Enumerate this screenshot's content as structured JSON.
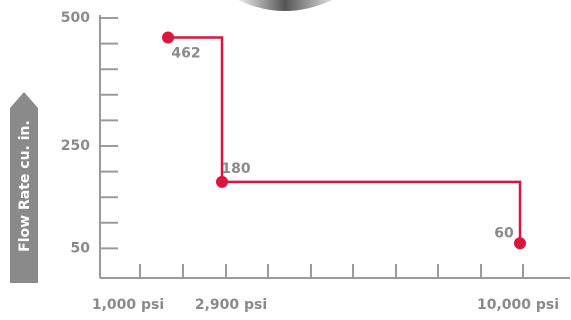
{
  "chart_data": {
    "type": "step-line",
    "y_label": "Flow Rate cu. in.",
    "categories": [
      "1,000 psi",
      "2,900 psi",
      "10,000 psi"
    ],
    "values": [
      462,
      180,
      60
    ],
    "color": "#d9163c",
    "ylim": [
      0,
      500
    ],
    "yticks": [
      50,
      250,
      500
    ],
    "y_minor_ticks": [
      50,
      100,
      150,
      200,
      250,
      300,
      350,
      400,
      450,
      500
    ]
  }
}
